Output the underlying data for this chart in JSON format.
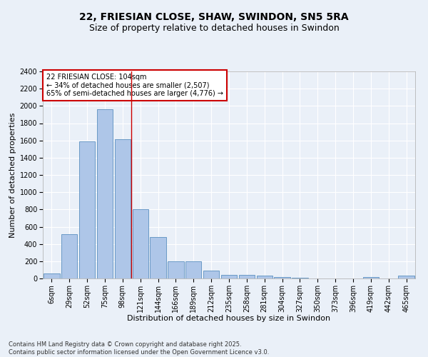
{
  "title_line1": "22, FRIESIAN CLOSE, SHAW, SWINDON, SN5 5RA",
  "title_line2": "Size of property relative to detached houses in Swindon",
  "xlabel": "Distribution of detached houses by size in Swindon",
  "ylabel": "Number of detached properties",
  "footer_line1": "Contains HM Land Registry data © Crown copyright and database right 2025.",
  "footer_line2": "Contains public sector information licensed under the Open Government Licence v3.0.",
  "categories": [
    "6sqm",
    "29sqm",
    "52sqm",
    "75sqm",
    "98sqm",
    "121sqm",
    "144sqm",
    "166sqm",
    "189sqm",
    "212sqm",
    "235sqm",
    "258sqm",
    "281sqm",
    "304sqm",
    "327sqm",
    "350sqm",
    "373sqm",
    "396sqm",
    "419sqm",
    "442sqm",
    "465sqm"
  ],
  "values": [
    55,
    510,
    1590,
    1960,
    1610,
    800,
    480,
    200,
    195,
    90,
    45,
    40,
    30,
    15,
    10,
    0,
    0,
    0,
    15,
    0,
    30
  ],
  "bar_color": "#aec6e8",
  "bar_edge_color": "#5a8fc0",
  "bg_color": "#eaf0f8",
  "grid_color": "#ffffff",
  "ylim": [
    0,
    2400
  ],
  "yticks": [
    0,
    200,
    400,
    600,
    800,
    1000,
    1200,
    1400,
    1600,
    1800,
    2000,
    2200,
    2400
  ],
  "annotation_title": "22 FRIESIAN CLOSE: 104sqm",
  "annotation_line1": "← 34% of detached houses are smaller (2,507)",
  "annotation_line2": "65% of semi-detached houses are larger (4,776) →",
  "annotation_box_color": "#ffffff",
  "annotation_box_edge": "#cc0000",
  "vline_color": "#cc0000",
  "vline_x": 4.5,
  "title_fontsize": 10,
  "subtitle_fontsize": 9,
  "axis_label_fontsize": 8,
  "tick_fontsize": 7,
  "annotation_fontsize": 7,
  "footer_fontsize": 6
}
